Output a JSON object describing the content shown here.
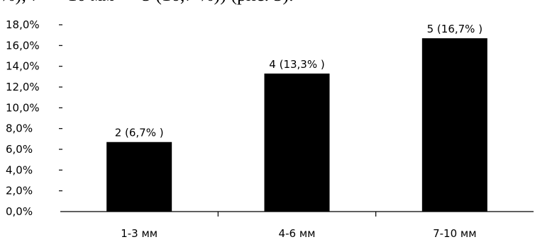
{
  "page": {
    "clipped_text": "%), 7 — 10 мм — 5 (16,7 %)) (рис. 3)."
  },
  "chart_data": {
    "type": "bar",
    "categories": [
      "1-3 мм",
      "4-6 мм",
      "7-10 мм"
    ],
    "values": [
      6.7,
      13.3,
      16.7
    ],
    "data_labels": [
      "2 (6,7% )",
      "4 (13,3% )",
      "5 (16,7% )"
    ],
    "y_ticks": [
      "0,0%",
      "2,0%",
      "4,0%",
      "6,0%",
      "8,0%",
      "10,0%",
      "12,0%",
      "14,0%",
      "16,0%",
      "18,0%"
    ],
    "ylim": [
      0,
      18
    ],
    "grid": false,
    "bar_color": "#000000",
    "title": "",
    "xlabel": "",
    "ylabel": ""
  }
}
